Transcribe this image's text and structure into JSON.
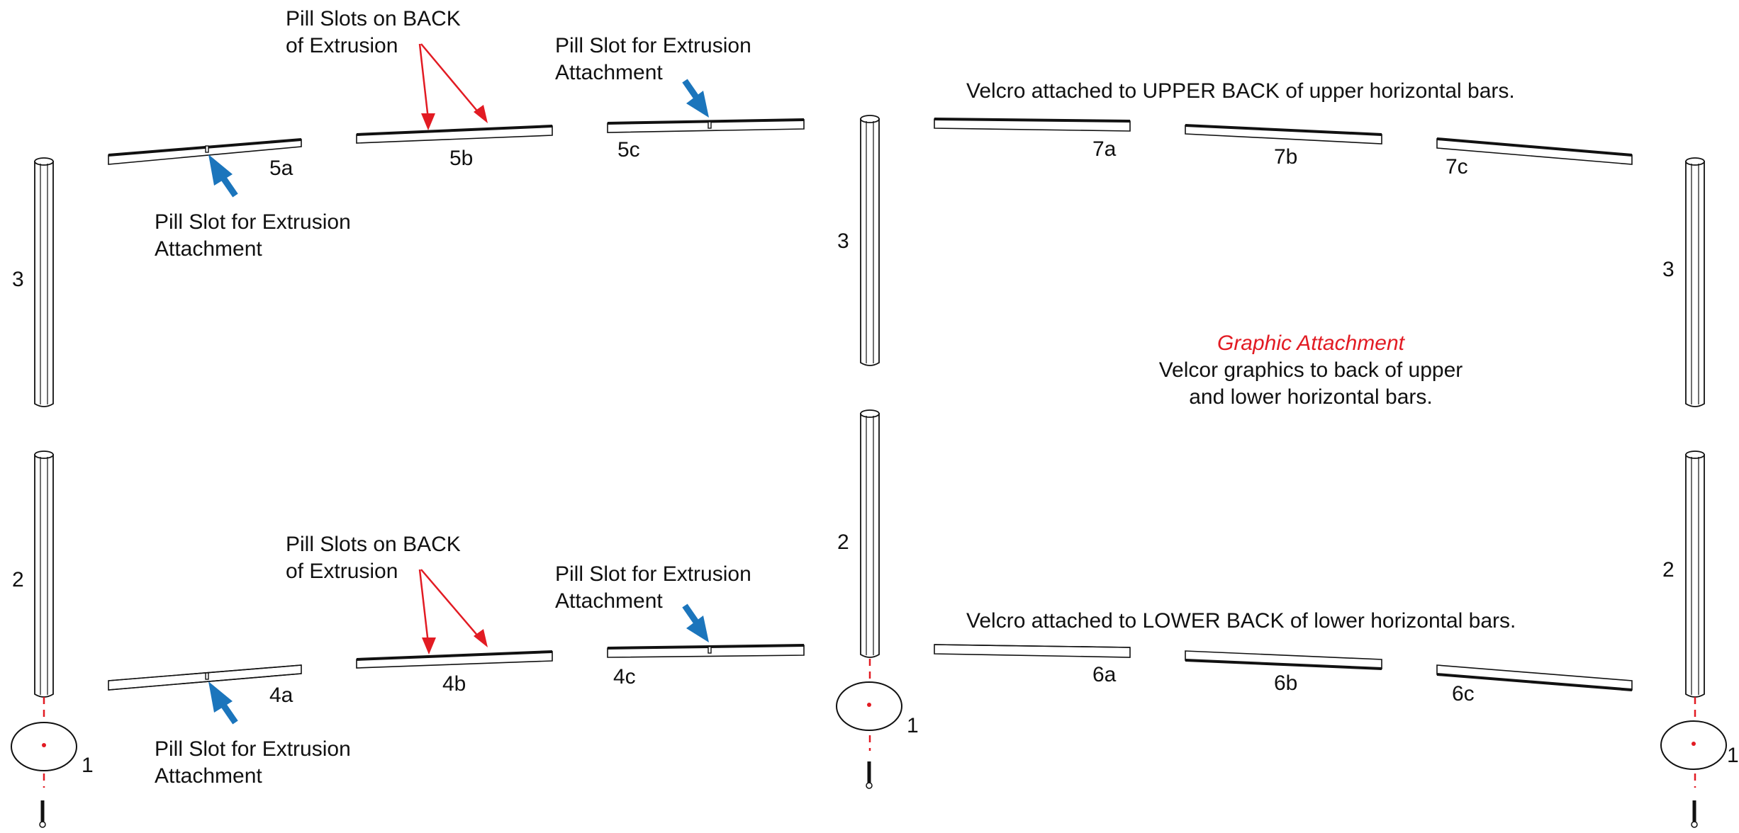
{
  "annotations": {
    "pill_slots_back_upper": [
      "Pill Slots on BACK",
      "of Extrusion"
    ],
    "pill_slot_upper_right": [
      "Pill Slot for Extrusion",
      "Attachment"
    ],
    "pill_slot_upper_left": [
      "Pill Slot for Extrusion",
      "Attachment"
    ],
    "pill_slots_back_lower": [
      "Pill Slots on BACK",
      "of Extrusion"
    ],
    "pill_slot_lower_right": [
      "Pill Slot for Extrusion",
      "Attachment"
    ],
    "pill_slot_lower_left": [
      "Pill Slot for Extrusion",
      "Attachment"
    ],
    "velcro_upper": "Velcro attached to UPPER BACK of upper horizontal bars.",
    "velcro_lower": "Velcro attached to LOWER BACK of lower horizontal bars.",
    "graphic_title": "Graphic Attachment",
    "graphic_body": [
      "Velcor graphics to back of upper",
      "and lower horizontal  bars."
    ]
  },
  "part_labels": {
    "upper_bars": [
      "5a",
      "5b",
      "5c",
      "7a",
      "7b",
      "7c"
    ],
    "lower_bars": [
      "4a",
      "4b",
      "4c",
      "6a",
      "6b",
      "6c"
    ],
    "upper_poles": [
      "3",
      "3",
      "3"
    ],
    "lower_poles": [
      "2",
      "2",
      "2"
    ],
    "bases": [
      "1",
      "1",
      "1"
    ]
  },
  "colors": {
    "callout_red": "#e21b23",
    "callout_blue": "#1b75bc",
    "line": "#111111"
  }
}
